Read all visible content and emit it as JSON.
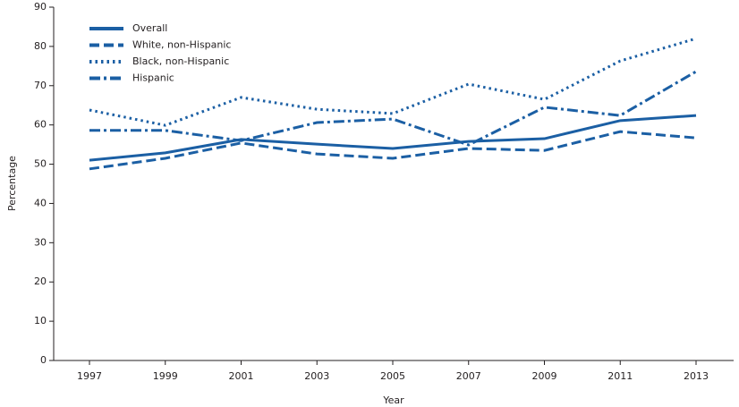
{
  "chart_data": {
    "type": "line",
    "x_label": "Year",
    "y_label": "Percentage",
    "categories": [
      "1997",
      "1999",
      "2001",
      "2003",
      "2005",
      "2007",
      "2009",
      "2011",
      "2013"
    ],
    "series": [
      {
        "name": "Overall",
        "color": "#1b5fa4",
        "style": "solid",
        "values": [
          51.0,
          52.9,
          56.3,
          55.1,
          54.0,
          55.8,
          56.5,
          61.1,
          62.4
        ]
      },
      {
        "name": "White, non-Hispanic",
        "color": "#1b5fa4",
        "style": "dashed",
        "values": [
          48.8,
          51.5,
          55.4,
          52.6,
          51.5,
          54.0,
          53.5,
          58.3,
          56.7
        ]
      },
      {
        "name": "Black, non-Hispanic",
        "color": "#1b5fa4",
        "style": "dotted",
        "values": [
          63.8,
          59.9,
          67.0,
          64.0,
          62.9,
          70.4,
          66.5,
          76.3,
          82.0
        ]
      },
      {
        "name": "Hispanic",
        "color": "#1b5fa4",
        "style": "dashdot",
        "values": [
          58.6,
          58.6,
          56.0,
          60.6,
          61.5,
          54.9,
          64.5,
          62.4,
          73.6
        ]
      }
    ],
    "ylim": [
      0,
      90
    ],
    "yticks": [
      0,
      10,
      20,
      30,
      40,
      50,
      60,
      70,
      80,
      90
    ],
    "legend": "top-left"
  }
}
